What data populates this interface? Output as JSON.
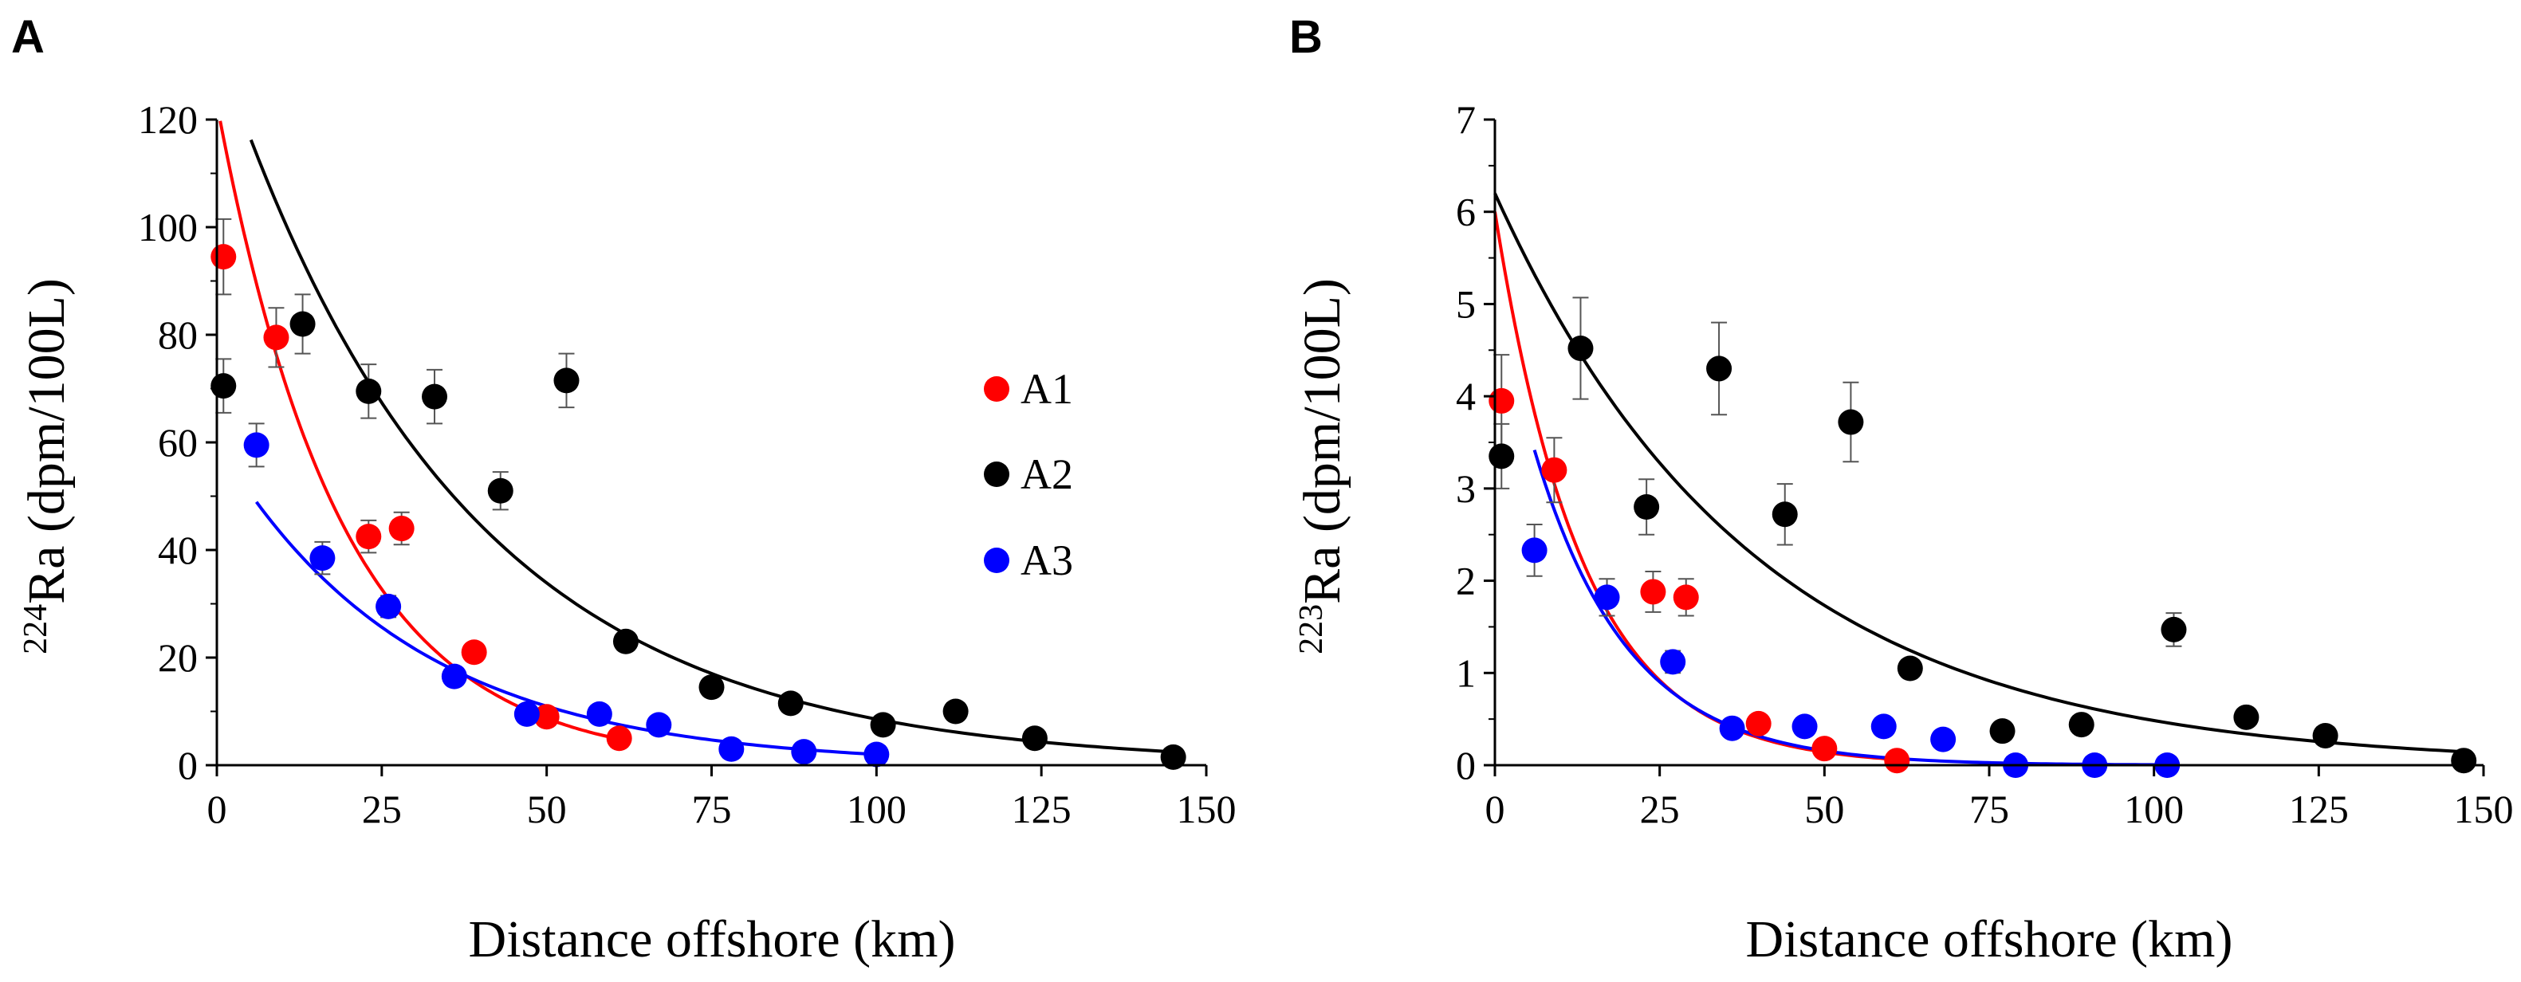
{
  "chart_data": [
    {
      "panel": "A",
      "type": "scatter",
      "xlabel": "Distance offshore (km)",
      "ylabel_sup": "224",
      "ylabel_main": "Ra (dpm/100L)",
      "xlim": [
        0,
        150
      ],
      "ylim": [
        0,
        120
      ],
      "xticks": [
        0,
        25,
        50,
        75,
        100,
        125,
        150
      ],
      "yticks": [
        0,
        20,
        40,
        60,
        80,
        100,
        120
      ],
      "series": [
        {
          "name": "A1",
          "color": "#ff0000",
          "points": [
            {
              "x": 1,
              "y": 94.5,
              "err": 7
            },
            {
              "x": 9,
              "y": 79.5,
              "err": 5.5
            },
            {
              "x": 23,
              "y": 42.5,
              "err": 3
            },
            {
              "x": 28,
              "y": 44,
              "err": 3
            },
            {
              "x": 39,
              "y": 21,
              "err": 1.5
            },
            {
              "x": 50,
              "y": 9,
              "err": 1
            },
            {
              "x": 61,
              "y": 5,
              "err": 0.5
            }
          ],
          "fit": {
            "x0": 0,
            "x1": 61,
            "a": 123,
            "k": 0.053
          }
        },
        {
          "name": "A2",
          "color": "#000000",
          "points": [
            {
              "x": 1,
              "y": 70.5,
              "err": 5
            },
            {
              "x": 13,
              "y": 82,
              "err": 5.5
            },
            {
              "x": 23,
              "y": 69.5,
              "err": 5
            },
            {
              "x": 33,
              "y": 68.5,
              "err": 5
            },
            {
              "x": 43,
              "y": 51,
              "err": 3.5
            },
            {
              "x": 53,
              "y": 71.5,
              "err": 5
            },
            {
              "x": 62,
              "y": 23,
              "err": 1.5
            },
            {
              "x": 75,
              "y": 14.5,
              "err": 1
            },
            {
              "x": 87,
              "y": 11.5,
              "err": 1
            },
            {
              "x": 101,
              "y": 7.5,
              "err": 0.8
            },
            {
              "x": 112,
              "y": 10,
              "err": 0.8
            },
            {
              "x": 124,
              "y": 5,
              "err": 0.5
            },
            {
              "x": 145,
              "y": 1.5,
              "err": 0.3
            }
          ],
          "fit": {
            "x0": 4,
            "x1": 145,
            "a": 134,
            "k": 0.0275
          }
        },
        {
          "name": "A3",
          "color": "#0000ff",
          "points": [
            {
              "x": 6,
              "y": 59.5,
              "err": 4
            },
            {
              "x": 16,
              "y": 38.5,
              "err": 3
            },
            {
              "x": 26,
              "y": 29.5,
              "err": 2
            },
            {
              "x": 36,
              "y": 16.5,
              "err": 1.2
            },
            {
              "x": 47,
              "y": 9.5,
              "err": 1
            },
            {
              "x": 58,
              "y": 9.5,
              "err": 1
            },
            {
              "x": 67,
              "y": 7.5,
              "err": 0.8
            },
            {
              "x": 78,
              "y": 3,
              "err": 0.5
            },
            {
              "x": 89,
              "y": 2.5,
              "err": 0.5
            },
            {
              "x": 100,
              "y": 2,
              "err": 0.5
            }
          ],
          "fit": {
            "x0": 6,
            "x1": 100,
            "a": 60,
            "k": 0.034
          }
        }
      ],
      "legend": [
        "A1",
        "A2",
        "A3"
      ]
    },
    {
      "panel": "B",
      "type": "scatter",
      "xlabel": "Distance offshore (km)",
      "ylabel_sup": "223",
      "ylabel_main": "Ra (dpm/100L)",
      "xlim": [
        0,
        150
      ],
      "ylim": [
        0,
        7
      ],
      "xticks": [
        0,
        25,
        50,
        75,
        100,
        125,
        150
      ],
      "yticks": [
        0,
        1,
        2,
        3,
        4,
        5,
        6,
        7
      ],
      "series": [
        {
          "name": "A1",
          "color": "#ff0000",
          "points": [
            {
              "x": 1,
              "y": 3.95,
              "err": 0.5
            },
            {
              "x": 9,
              "y": 3.2,
              "err": 0.35
            },
            {
              "x": 24,
              "y": 1.88,
              "err": 0.22
            },
            {
              "x": 29,
              "y": 1.82,
              "err": 0.2
            },
            {
              "x": 40,
              "y": 0.45,
              "err": 0.06
            },
            {
              "x": 50,
              "y": 0.18,
              "err": 0.03
            },
            {
              "x": 61,
              "y": 0.05,
              "err": 0.02
            }
          ],
          "fit": {
            "x0": 0,
            "x1": 61,
            "a": 6.0,
            "k": 0.075
          }
        },
        {
          "name": "A2",
          "color": "#000000",
          "points": [
            {
              "x": 1,
              "y": 3.35,
              "err": 0.35
            },
            {
              "x": 13,
              "y": 4.52,
              "err": 0.55
            },
            {
              "x": 23,
              "y": 2.8,
              "err": 0.3
            },
            {
              "x": 34,
              "y": 4.3,
              "err": 0.5
            },
            {
              "x": 44,
              "y": 2.72,
              "err": 0.33
            },
            {
              "x": 54,
              "y": 3.72,
              "err": 0.43
            },
            {
              "x": 63,
              "y": 1.05,
              "err": 0.1
            },
            {
              "x": 77,
              "y": 0.37,
              "err": 0.05
            },
            {
              "x": 89,
              "y": 0.44,
              "err": 0.05
            },
            {
              "x": 103,
              "y": 1.47,
              "err": 0.18
            },
            {
              "x": 114,
              "y": 0.52,
              "err": 0.06
            },
            {
              "x": 126,
              "y": 0.32,
              "err": 0.04
            },
            {
              "x": 147,
              "y": 0.05,
              "err": 0.02
            }
          ],
          "fit": {
            "x0": 0,
            "x1": 147,
            "a": 6.2,
            "k": 0.0255
          }
        },
        {
          "name": "A3",
          "color": "#0000ff",
          "points": [
            {
              "x": 6,
              "y": 2.33,
              "err": 0.28
            },
            {
              "x": 17,
              "y": 1.82,
              "err": 0.2
            },
            {
              "x": 27,
              "y": 1.12,
              "err": 0.12
            },
            {
              "x": 36,
              "y": 0.4,
              "err": 0.05
            },
            {
              "x": 47,
              "y": 0.42,
              "err": 0.05
            },
            {
              "x": 59,
              "y": 0.42,
              "err": 0.05
            },
            {
              "x": 68,
              "y": 0.28,
              "err": 0.04
            },
            {
              "x": 79,
              "y": 0.0,
              "err": 0.02
            },
            {
              "x": 91,
              "y": 0.0,
              "err": 0.02
            },
            {
              "x": 102,
              "y": 0.0,
              "err": 0.02
            }
          ],
          "fit": {
            "x0": 6,
            "x1": 102,
            "a": 5.2,
            "k": 0.07
          }
        }
      ]
    }
  ]
}
